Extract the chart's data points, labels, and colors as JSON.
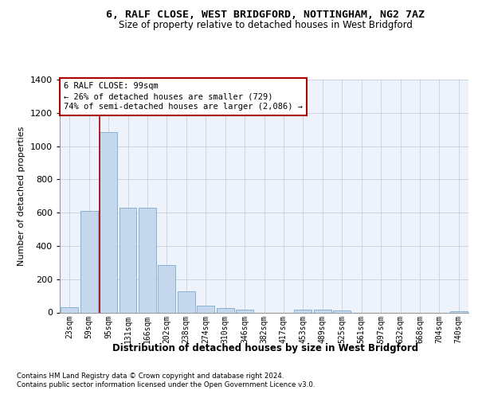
{
  "title": "6, RALF CLOSE, WEST BRIDGFORD, NOTTINGHAM, NG2 7AZ",
  "subtitle": "Size of property relative to detached houses in West Bridgford",
  "xlabel": "Distribution of detached houses by size in West Bridgford",
  "ylabel": "Number of detached properties",
  "bar_color": "#c5d8ee",
  "bar_edge_color": "#7aaad0",
  "grid_color": "#c8cfe0",
  "background_color": "#eef2fb",
  "vline_color": "#aa0000",
  "vline_x_index": 2,
  "annotation_text_line1": "6 RALF CLOSE: 99sqm",
  "annotation_text_line2": "← 26% of detached houses are smaller (729)",
  "annotation_text_line3": "74% of semi-detached houses are larger (2,086) →",
  "categories": [
    "23sqm",
    "59sqm",
    "95sqm",
    "131sqm",
    "166sqm",
    "202sqm",
    "238sqm",
    "274sqm",
    "310sqm",
    "346sqm",
    "382sqm",
    "417sqm",
    "453sqm",
    "489sqm",
    "525sqm",
    "561sqm",
    "597sqm",
    "632sqm",
    "668sqm",
    "704sqm",
    "740sqm"
  ],
  "values": [
    30,
    610,
    1085,
    630,
    630,
    285,
    125,
    42,
    25,
    18,
    0,
    0,
    18,
    15,
    10,
    0,
    0,
    0,
    0,
    0,
    8
  ],
  "ylim_max": 1400,
  "yticks": [
    0,
    200,
    400,
    600,
    800,
    1000,
    1200,
    1400
  ],
  "footer1": "Contains HM Land Registry data © Crown copyright and database right 2024.",
  "footer2": "Contains public sector information licensed under the Open Government Licence v3.0."
}
